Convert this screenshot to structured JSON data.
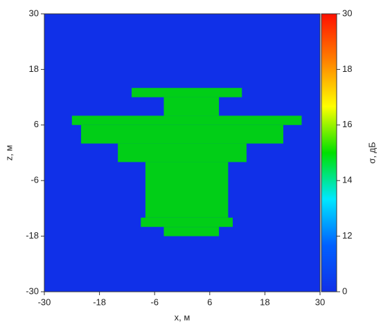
{
  "chart_data": {
    "type": "heatmap",
    "xlabel": "x, м",
    "ylabel": "z, м",
    "colorbar_label": "σ, дБ",
    "xlim": [
      -30,
      30
    ],
    "xticks": [
      -30,
      -18,
      -6,
      6,
      18,
      30
    ],
    "ylim": [
      -30,
      30
    ],
    "yticks": [
      -30,
      -18,
      -6,
      6,
      18,
      30
    ],
    "clim": [
      0,
      30
    ],
    "cticks": [
      0,
      12,
      14,
      16,
      18,
      30
    ],
    "colormap": [
      "#1030e8",
      "#0060ff",
      "#00e8ff",
      "#00e000",
      "#ffff00",
      "#ff8000",
      "#ff1000"
    ],
    "background_value": 0,
    "cells": [
      {
        "x0": -11,
        "x1": 13,
        "z0": 12,
        "z1": 14,
        "value": 15
      },
      {
        "x0": -4,
        "x1": 8,
        "z0": 8,
        "z1": 12,
        "value": 15
      },
      {
        "x0": -24,
        "x1": 26,
        "z0": 6,
        "z1": 8,
        "value": 15
      },
      {
        "x0": -22,
        "x1": 22,
        "z0": 2,
        "z1": 6,
        "value": 15
      },
      {
        "x0": -14,
        "x1": 14,
        "z0": -2,
        "z1": 2,
        "value": 15
      },
      {
        "x0": -8,
        "x1": 10,
        "z0": -14,
        "z1": -2,
        "value": 15
      },
      {
        "x0": -9,
        "x1": 11,
        "z0": -16,
        "z1": -14,
        "value": 15
      },
      {
        "x0": -4,
        "x1": 8,
        "z0": -18,
        "z1": -16,
        "value": 15
      }
    ]
  }
}
